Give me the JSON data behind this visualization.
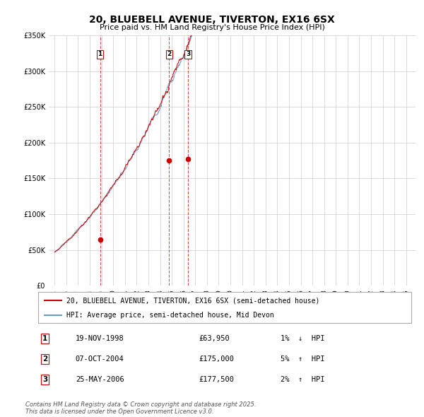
{
  "title": "20, BLUEBELL AVENUE, TIVERTON, EX16 6SX",
  "subtitle": "Price paid vs. HM Land Registry's House Price Index (HPI)",
  "ylim": [
    0,
    350000
  ],
  "yticks": [
    0,
    50000,
    100000,
    150000,
    200000,
    250000,
    300000,
    350000
  ],
  "ytick_labels": [
    "£0",
    "£50K",
    "£100K",
    "£150K",
    "£200K",
    "£250K",
    "£300K",
    "£350K"
  ],
  "xmin": 1994.5,
  "xmax": 2025.8,
  "transactions": [
    {
      "num": 1,
      "date": "19-NOV-1998",
      "date_x": 1998.88,
      "price": 63950,
      "pct": "1%",
      "dir": "↓"
    },
    {
      "num": 2,
      "date": "07-OCT-2004",
      "date_x": 2004.77,
      "price": 175000,
      "pct": "5%",
      "dir": "↑"
    },
    {
      "num": 3,
      "date": "25-MAY-2006",
      "date_x": 2006.39,
      "price": 177500,
      "pct": "2%",
      "dir": "↑"
    }
  ],
  "line_color_red": "#cc0000",
  "line_color_blue": "#6699cc",
  "legend_label_red": "20, BLUEBELL AVENUE, TIVERTON, EX16 6SX (semi-detached house)",
  "legend_label_blue": "HPI: Average price, semi-detached house, Mid Devon",
  "footer": "Contains HM Land Registry data © Crown copyright and database right 2025.\nThis data is licensed under the Open Government Licence v3.0.",
  "grid_color": "#cccccc",
  "title_fontsize": 10,
  "subtitle_fontsize": 8,
  "tick_fontsize": 7,
  "legend_fontsize": 7,
  "table_fontsize": 7.5,
  "footer_fontsize": 6
}
